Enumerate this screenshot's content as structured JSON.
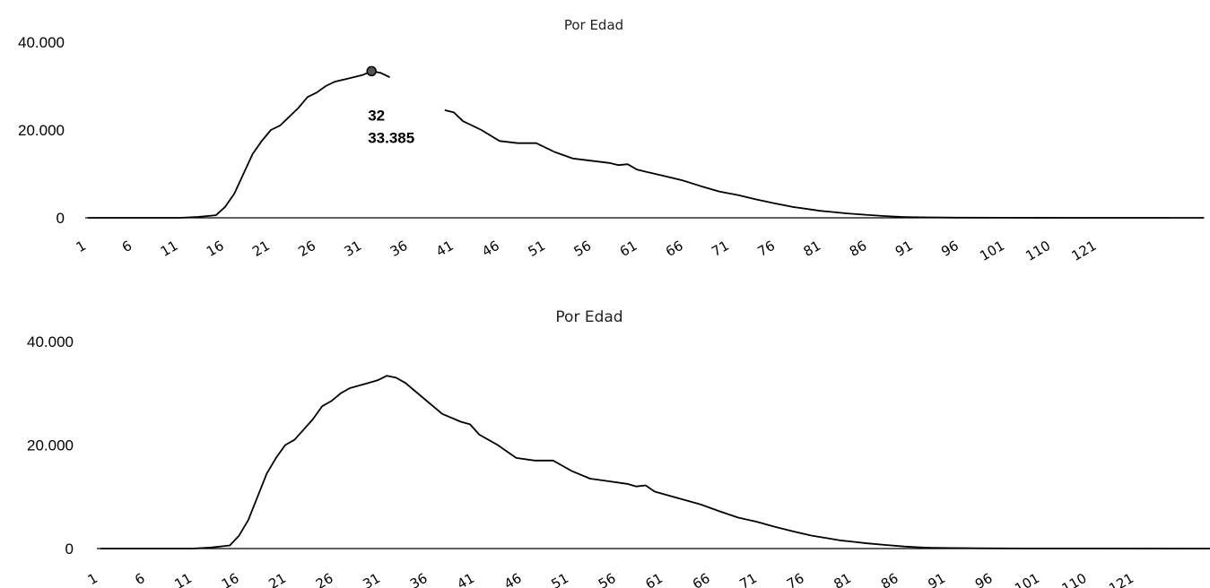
{
  "chart_data": [
    {
      "type": "line",
      "title": "Por Edad",
      "xlabel": "",
      "ylabel": "",
      "ylim": [
        0,
        40000
      ],
      "yticks": [
        "0",
        "20.000",
        "40.000"
      ],
      "xticks": [
        "1",
        "6",
        "11",
        "16",
        "21",
        "26",
        "31",
        "36",
        "41",
        "46",
        "51",
        "56",
        "61",
        "66",
        "71",
        "76",
        "81",
        "86",
        "91",
        "96",
        "101",
        "110",
        "121"
      ],
      "x": [
        1,
        6,
        11,
        13,
        15,
        16,
        17,
        18,
        19,
        20,
        21,
        22,
        23,
        24,
        25,
        26,
        27,
        28,
        29,
        30,
        31,
        32,
        33,
        34,
        36,
        38,
        40,
        41,
        42,
        43,
        44,
        46,
        48,
        50,
        51,
        52,
        54,
        56,
        58,
        59,
        60,
        61,
        62,
        64,
        66,
        68,
        70,
        71,
        72,
        74,
        76,
        78,
        80,
        81,
        82,
        84,
        86,
        88,
        90,
        91,
        93,
        96,
        101,
        110,
        121,
        123
      ],
      "values": [
        0,
        0,
        0,
        200,
        600,
        2500,
        5500,
        10000,
        14500,
        17500,
        20000,
        21000,
        23000,
        25000,
        27500,
        28500,
        30000,
        31000,
        31500,
        32000,
        32500,
        33385,
        33000,
        32000,
        29000,
        26000,
        24500,
        24000,
        22000,
        21000,
        20000,
        17500,
        17000,
        17000,
        16000,
        15000,
        13500,
        13000,
        12500,
        12000,
        12200,
        11000,
        10500,
        9500,
        8500,
        7200,
        6000,
        5600,
        5200,
        4200,
        3300,
        2500,
        1900,
        1600,
        1400,
        1000,
        700,
        400,
        200,
        150,
        100,
        50,
        20,
        10,
        5,
        0
      ],
      "tooltip": {
        "x_label": "32",
        "y_label": "33.385"
      }
    },
    {
      "type": "line",
      "title": "Por Edad",
      "xlabel": "",
      "ylabel": "",
      "ylim": [
        0,
        40000
      ],
      "yticks": [
        "0",
        "20.000",
        "40.000"
      ],
      "xticks": [
        "1",
        "6",
        "11",
        "16",
        "21",
        "26",
        "31",
        "36",
        "41",
        "46",
        "51",
        "56",
        "61",
        "66",
        "71",
        "76",
        "81",
        "86",
        "91",
        "96",
        "101",
        "110",
        "121"
      ],
      "x": [
        1,
        6,
        11,
        13,
        15,
        16,
        17,
        18,
        19,
        20,
        21,
        22,
        23,
        24,
        25,
        26,
        27,
        28,
        29,
        30,
        31,
        32,
        33,
        34,
        36,
        38,
        40,
        41,
        42,
        43,
        44,
        46,
        48,
        50,
        51,
        52,
        54,
        56,
        58,
        59,
        60,
        61,
        62,
        64,
        66,
        68,
        70,
        71,
        72,
        74,
        76,
        78,
        80,
        81,
        82,
        84,
        86,
        88,
        90,
        91,
        93,
        96,
        101,
        110,
        121,
        123
      ],
      "values": [
        0,
        0,
        0,
        200,
        600,
        2500,
        5500,
        10000,
        14500,
        17500,
        20000,
        21000,
        23000,
        25000,
        27500,
        28500,
        30000,
        31000,
        31500,
        32000,
        32500,
        33385,
        33000,
        32000,
        29000,
        26000,
        24500,
        24000,
        22000,
        21000,
        20000,
        17500,
        17000,
        17000,
        16000,
        15000,
        13500,
        13000,
        12500,
        12000,
        12200,
        11000,
        10500,
        9500,
        8500,
        7200,
        6000,
        5600,
        5200,
        4200,
        3300,
        2500,
        1900,
        1600,
        1400,
        1000,
        700,
        400,
        200,
        150,
        100,
        50,
        20,
        10,
        5,
        0
      ]
    }
  ]
}
